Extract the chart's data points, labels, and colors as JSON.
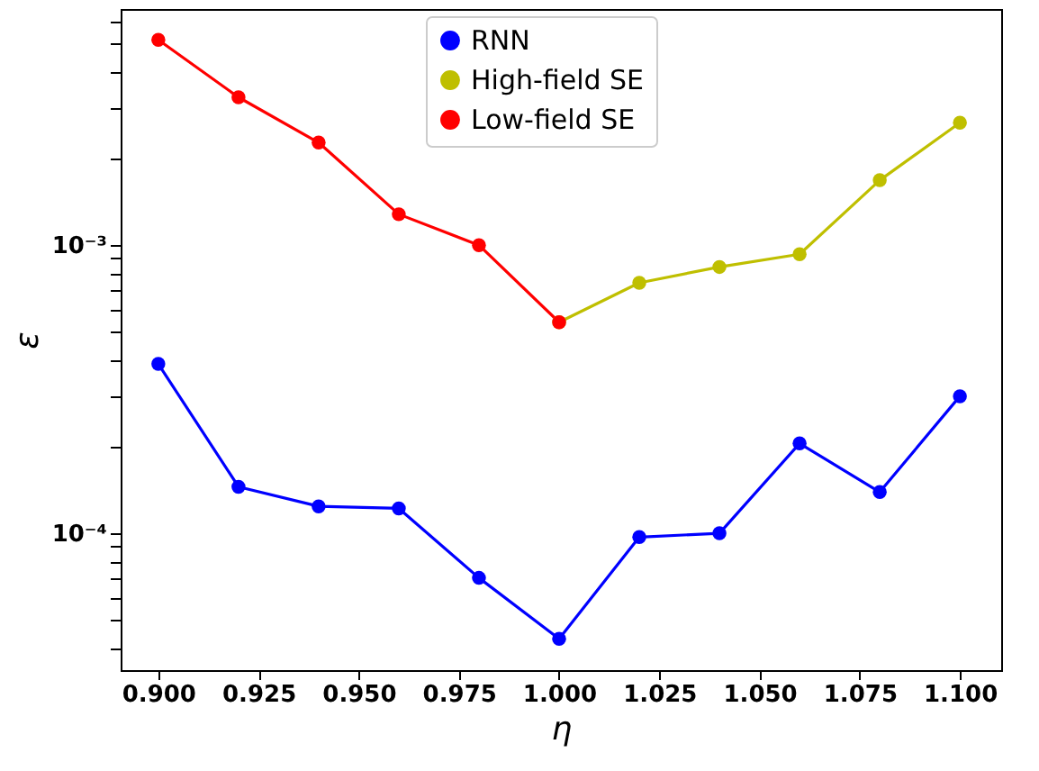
{
  "chart_data": {
    "type": "line",
    "xlabel": "η",
    "ylabel": "ε",
    "log": "y",
    "grid": false,
    "legend": "top",
    "marker": "circle",
    "line_style": "solid",
    "xlim": [
      0.8906,
      1.1103
    ],
    "ylim": [
      3.35e-05,
      0.0066
    ],
    "xticks": [
      {
        "value": 0.9,
        "label": "0.900"
      },
      {
        "value": 0.925,
        "label": "0.925"
      },
      {
        "value": 0.95,
        "label": "0.950"
      },
      {
        "value": 0.975,
        "label": "0.975"
      },
      {
        "value": 1.0,
        "label": "1.000"
      },
      {
        "value": 1.025,
        "label": "1.025"
      },
      {
        "value": 1.05,
        "label": "1.050"
      },
      {
        "value": 1.075,
        "label": "1.075"
      },
      {
        "value": 1.1,
        "label": "1.100"
      }
    ],
    "yticks": [
      {
        "value": 4e-05,
        "label": null
      },
      {
        "value": 5e-05,
        "label": null
      },
      {
        "value": 6e-05,
        "label": null
      },
      {
        "value": 7e-05,
        "label": null
      },
      {
        "value": 8e-05,
        "label": null
      },
      {
        "value": 9e-05,
        "label": null
      },
      {
        "value": 0.0001,
        "label": "10⁻⁴"
      },
      {
        "value": 0.0002,
        "label": null
      },
      {
        "value": 0.0003,
        "label": null
      },
      {
        "value": 0.0004,
        "label": null
      },
      {
        "value": 0.0005,
        "label": null
      },
      {
        "value": 0.0006,
        "label": null
      },
      {
        "value": 0.0007,
        "label": null
      },
      {
        "value": 0.0008,
        "label": null
      },
      {
        "value": 0.0009,
        "label": null
      },
      {
        "value": 0.001,
        "label": "10⁻³"
      },
      {
        "value": 0.002,
        "label": null
      },
      {
        "value": 0.003,
        "label": null
      },
      {
        "value": 0.004,
        "label": null
      },
      {
        "value": 0.005,
        "label": null
      },
      {
        "value": 0.006,
        "label": null
      }
    ],
    "series": [
      {
        "name": "RNN",
        "color": "#0000ff",
        "x": [
          0.9,
          0.92,
          0.94,
          0.96,
          0.98,
          1.0,
          1.02,
          1.04,
          1.06,
          1.08,
          1.1
        ],
        "values": [
          0.000387,
          0.000145,
          0.000124,
          0.000122,
          7e-05,
          4.3e-05,
          9.7e-05,
          0.0001,
          0.000205,
          0.000139,
          0.000299
        ]
      },
      {
        "name": "High-field SE",
        "color": "#bfbf00",
        "x": [
          1.0,
          1.02,
          1.04,
          1.06,
          1.08,
          1.1
        ],
        "values": [
          0.00054,
          0.00074,
          0.00084,
          0.00093,
          0.00168,
          0.00266
        ]
      },
      {
        "name": "Low-field SE",
        "color": "#ff0000",
        "x": [
          0.9,
          0.92,
          0.94,
          0.96,
          0.98,
          1.0
        ],
        "values": [
          0.00516,
          0.00326,
          0.00227,
          0.00128,
          0.001,
          0.00054
        ]
      }
    ]
  }
}
